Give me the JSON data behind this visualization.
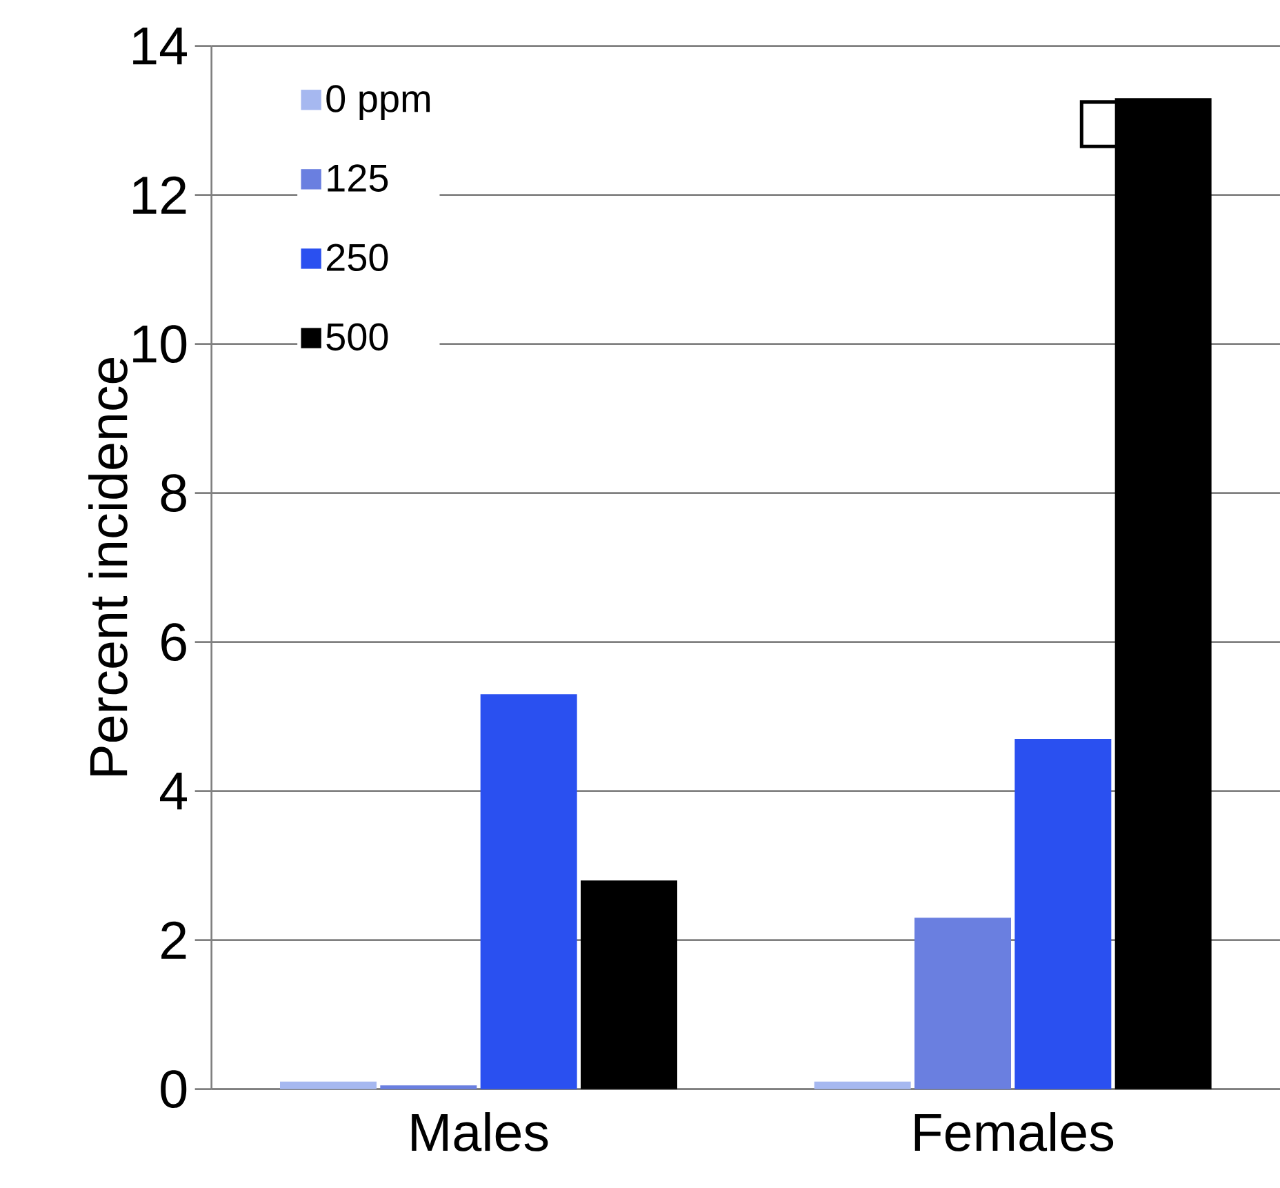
{
  "chart_data": {
    "type": "bar",
    "ylabel": "Percent incidence",
    "categories": [
      "Males",
      "Females"
    ],
    "series": [
      {
        "name": "0 ppm",
        "color": "#a6b8f0",
        "values": [
          0.1,
          0.1
        ]
      },
      {
        "name": "125",
        "color": "#6a7fe0",
        "values": [
          0.05,
          2.3
        ]
      },
      {
        "name": "250",
        "color": "#2a50f0",
        "values": [
          5.3,
          4.7
        ]
      },
      {
        "name": "500",
        "color": "#000000",
        "values": [
          2.8,
          13.3
        ]
      }
    ],
    "ylim": [
      0,
      14
    ],
    "yticks": [
      0,
      2,
      4,
      6,
      8,
      10,
      12,
      14
    ],
    "grid": "y",
    "legend": "top left",
    "annotations": [
      "□"
    ]
  }
}
